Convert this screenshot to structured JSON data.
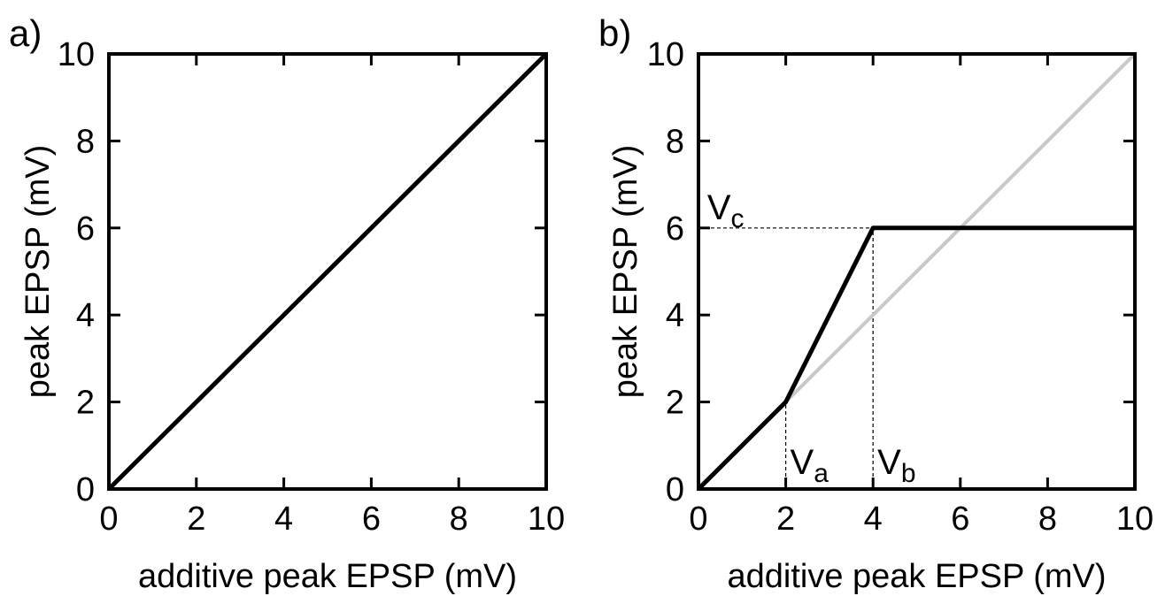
{
  "chart_data": [
    {
      "panel_label": "a)",
      "type": "line",
      "xlabel": "additive peak EPSP (mV)",
      "ylabel": "peak EPSP (mV)",
      "xlim": [
        0,
        10
      ],
      "ylim": [
        0,
        10
      ],
      "x_ticks": [
        0,
        2,
        4,
        6,
        8,
        10
      ],
      "y_ticks": [
        0,
        2,
        4,
        6,
        8,
        10
      ],
      "grid": false,
      "series": [
        {
          "color": "#000000",
          "x": [
            0,
            10
          ],
          "y": [
            0,
            10
          ]
        }
      ],
      "annotations": []
    },
    {
      "panel_label": "b)",
      "type": "line",
      "xlabel": "additive peak EPSP (mV)",
      "ylabel": "peak EPSP (mV)",
      "xlim": [
        0,
        10
      ],
      "ylim": [
        0,
        10
      ],
      "x_ticks": [
        0,
        2,
        4,
        6,
        8,
        10
      ],
      "y_ticks": [
        0,
        2,
        4,
        6,
        8,
        10
      ],
      "grid": false,
      "series": [
        {
          "color": "#c8c8c8",
          "x": [
            0,
            10
          ],
          "y": [
            0,
            10
          ]
        },
        {
          "color": "#000000",
          "x": [
            0,
            2,
            4,
            10
          ],
          "y": [
            0,
            2,
            6,
            6
          ]
        }
      ],
      "reference_lines": [
        {
          "kind": "vertical",
          "x": 2,
          "y_to": 2
        },
        {
          "kind": "vertical",
          "x": 4,
          "y_to": 6
        },
        {
          "kind": "horizontal",
          "y": 6,
          "x_to": 4
        }
      ],
      "annotations": [
        {
          "base": "V",
          "sub": "a",
          "x": 2.1,
          "y": 0.35
        },
        {
          "base": "V",
          "sub": "b",
          "x": 4.1,
          "y": 0.35
        },
        {
          "base": "V",
          "sub": "c",
          "x": 0.2,
          "y": 6.2
        }
      ]
    }
  ]
}
